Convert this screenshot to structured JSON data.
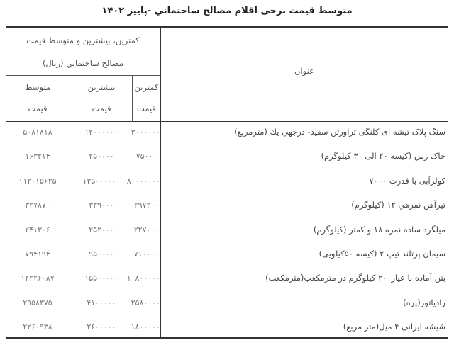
{
  "title": "متوسط قیمت برخی اقلام مصالح ساختماني -پاییز ۱۴۰۲",
  "header": {
    "group_line1": "کمترین، بیشترین و متوسط قیمت",
    "group_line2": "مصالح ساختماني (ریال)",
    "subject": "عنوان",
    "min_line1": "کمترین",
    "min_line2": "قیمت",
    "max_line1": "بیشترین",
    "max_line2": "قیمت",
    "avg_line1": "متوسط",
    "avg_line2": "قیمت"
  },
  "rows": [
    {
      "name": "سنگ پلاک تیشه ای کلنگی تراورتن سفید- درجهي يك (مترمربع)",
      "min": "۳۰۰۰۰۰۰",
      "max": "۱۲۰۰۰۰۰۰",
      "avg": "۵۰۸۱۸۱۸"
    },
    {
      "name": "خاک رس (کیسه ۲۰ الی ۳۰ کیلوگرم)",
      "min": "۷۵۰۰۰",
      "max": "۲۵۰۰۰۰",
      "avg": "۱۶۳۲۱۴"
    },
    {
      "name": "کولرآبی با قدرت ۷۰۰۰",
      "min": "۸۰۰۰۰۰۰۰",
      "max": "۱۳۵۰۰۰۰۰۰",
      "avg": "۱۱۲۰۱۵۶۲۵"
    },
    {
      "name": "تیرآهن نمرهي ۱۲ (کیلوگرم)",
      "min": "۲۹۷۲۰۰",
      "max": "۳۳۹۰۰۰",
      "avg": "۳۲۷۸۷۰"
    },
    {
      "name": "میلگرد ساده نمره ۱۸ و کمتر (کیلوگرم)",
      "min": "۲۲۷۰۰۰",
      "max": "۲۵۲۰۰۰",
      "avg": "۲۴۱۳۰۶"
    },
    {
      "name": "سیمان پرتلند تیپ ۲ (کیسه ۵۰کیلویی)",
      "min": "۷۱۰۰۰۰",
      "max": "۹۵۰۰۰۰",
      "avg": "۷۹۴۱۹۴"
    },
    {
      "name": "بتن آماده با عیار۲۰۰ کیلوگرم در مترمکعب(مترمکعب)",
      "min": "۱۰۸۰۰۰۰۰",
      "max": "۱۵۵۰۰۰۰۰",
      "avg": "۱۲۲۲۶۰۸۷"
    },
    {
      "name": "رادیاتور(پره)",
      "min": "۲۵۸۰۰۰۰",
      "max": "۴۱۰۰۰۰۰",
      "avg": "۲۹۵۸۳۷۵"
    },
    {
      "name": "شیشه ایرانی ۴ میل(متر مربع)",
      "min": "۱۸۰۰۰۰۰",
      "max": "۲۶۰۰۰۰۰",
      "avg": "۲۲۶۰۹۳۸"
    }
  ]
}
